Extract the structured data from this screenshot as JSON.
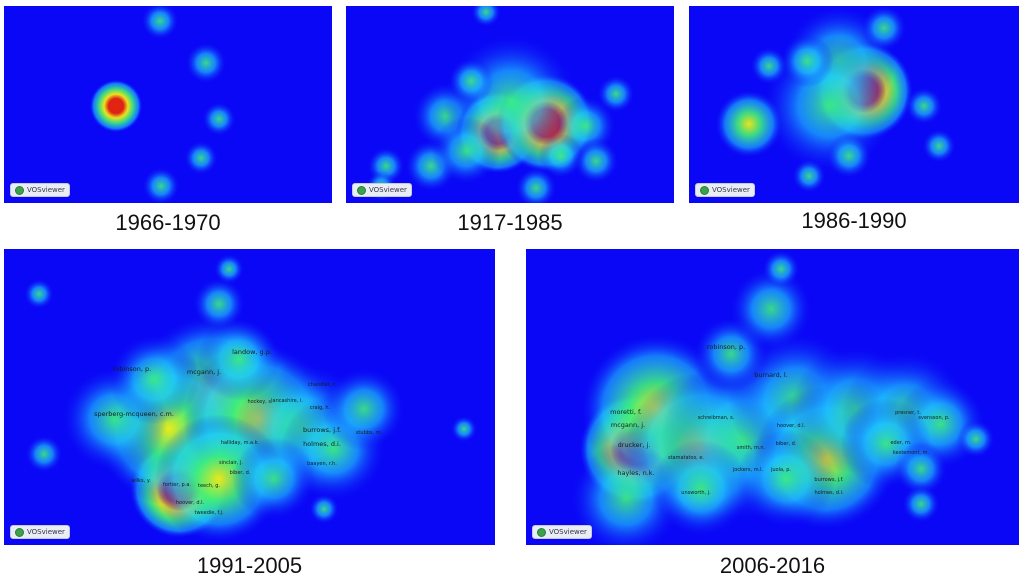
{
  "colors": {
    "background": "#0a06f6",
    "density_low": "#1ec8ff",
    "density_mid": "#3ef07a",
    "density_high": "#f6ef10",
    "density_peak": "#e8240c"
  },
  "badge": {
    "icon": "vosviewer-logo-icon",
    "text": "VOSviewer"
  },
  "panels": [
    {
      "id": "p1",
      "caption": "1966-1970",
      "labels": []
    },
    {
      "id": "p2",
      "caption": "1917-1985",
      "labels": []
    },
    {
      "id": "p3",
      "caption": "1986-1990",
      "labels": []
    },
    {
      "id": "p4",
      "caption": "1991-2005",
      "labels": [
        "robinson, p.",
        "sperberg-mcqueen, c.m.",
        "landow, g.p.",
        "mcgann, j.",
        "burrows, j.f.",
        "holmes, d.i.",
        "halliday, m.a.k.",
        "baayen, r.h.",
        "biber, d.",
        "sinclair, j.",
        "craig, h.",
        "lancashire, i.",
        "hockey, s.",
        "chandler, r.",
        "stubbs, m.",
        "teech, g.",
        "wilks, y.",
        "fortier, p.a.",
        "hoover, d.l.",
        "tweedie, f.j."
      ]
    },
    {
      "id": "p5",
      "caption": "2006-2016",
      "labels": [
        "robinson, p.",
        "burnard, l.",
        "moretti, f.",
        "mcgann, j.",
        "drucker, j.",
        "hayles, n.k.",
        "burrows, j.f.",
        "holmes, d.i.",
        "biber, d.",
        "jockers, m.l.",
        "juola, p.",
        "hoover, d.l.",
        "smith, m.n.",
        "presner, t.",
        "svensson, p.",
        "eder, m.",
        "kestemont, m.",
        "stamatatos, e.",
        "unsworth, j.",
        "schreibman, s."
      ]
    }
  ]
}
